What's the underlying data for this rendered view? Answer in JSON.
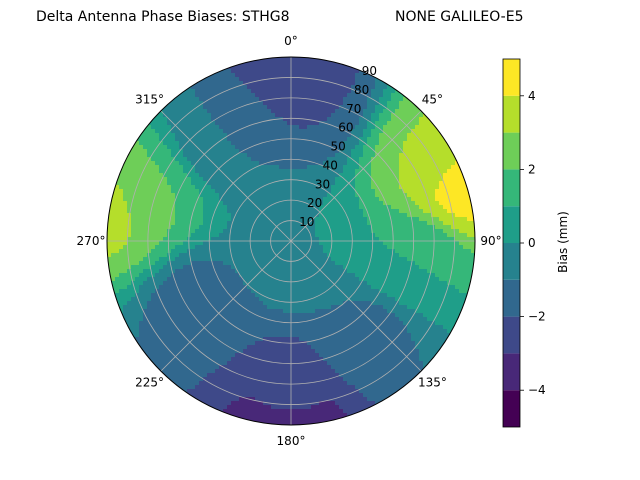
{
  "title_left": "Delta Antenna Phase Biases: STHG8",
  "title_right": "NONE GALILEO-E5",
  "chart_data": {
    "type": "polar-contour",
    "title": "Delta Antenna Phase Biases: STHG8",
    "subtitle": "NONE GALILEO-E5",
    "azimuth_ticks": [
      "0°",
      "45°",
      "90°",
      "135°",
      "180°",
      "225°",
      "270°",
      "315°"
    ],
    "azimuth_tick_degrees": [
      0,
      45,
      90,
      135,
      180,
      225,
      270,
      315
    ],
    "zenith_ticks": [
      "10",
      "20",
      "30",
      "40",
      "50",
      "60",
      "70",
      "80",
      "90"
    ],
    "zenith_tick_values": [
      10,
      20,
      30,
      40,
      50,
      60,
      70,
      80,
      90
    ],
    "zenith_range": [
      0,
      90
    ],
    "grid": true,
    "colorbar": {
      "label": "Bias (mm)",
      "range": [
        -5,
        5
      ],
      "ticks": [
        "−4",
        "−2",
        "0",
        "2",
        "4"
      ],
      "tick_values": [
        -4,
        -2,
        0,
        2,
        4
      ],
      "levels": [
        -5,
        -4,
        -3,
        -2,
        -1,
        0,
        1,
        2,
        3,
        4,
        5
      ],
      "colormap": "viridis",
      "colors": [
        "#440154",
        "#482878",
        "#3e4989",
        "#31688e",
        "#26828e",
        "#1f9e89",
        "#35b779",
        "#6ece58",
        "#b5de2b",
        "#fde725"
      ]
    },
    "regions": [
      {
        "description": "north-rim low",
        "azimuth": 0,
        "zenith": 84,
        "value": -3.0
      },
      {
        "description": "north band",
        "azimuth": 5,
        "zenith": 70,
        "value": -2.0
      },
      {
        "description": "northeast high",
        "azimuth": 70,
        "zenith": 88,
        "value": 4.5
      },
      {
        "description": "northeast upper",
        "azimuth": 60,
        "zenith": 80,
        "value": 3.0
      },
      {
        "description": "west high",
        "azimuth": 280,
        "zenith": 88,
        "value": 3.5
      },
      {
        "description": "west moderate",
        "azimuth": 285,
        "zenith": 75,
        "value": 2.0
      },
      {
        "description": "south rim low",
        "azimuth": 180,
        "zenith": 88,
        "value": -4.0
      },
      {
        "description": "south band",
        "azimuth": 180,
        "zenith": 78,
        "value": -2.5
      },
      {
        "description": "southwest dip",
        "azimuth": 235,
        "zenith": 55,
        "value": -1.5
      },
      {
        "description": "southeast dip",
        "azimuth": 140,
        "zenith": 60,
        "value": -1.2
      },
      {
        "description": "east moderate",
        "azimuth": 100,
        "zenith": 60,
        "value": 1.0
      },
      {
        "description": "northwest dip",
        "azimuth": 330,
        "zenith": 60,
        "value": -1.0
      },
      {
        "description": "center",
        "azimuth": 0,
        "zenith": 0,
        "value": 0.0
      }
    ]
  }
}
